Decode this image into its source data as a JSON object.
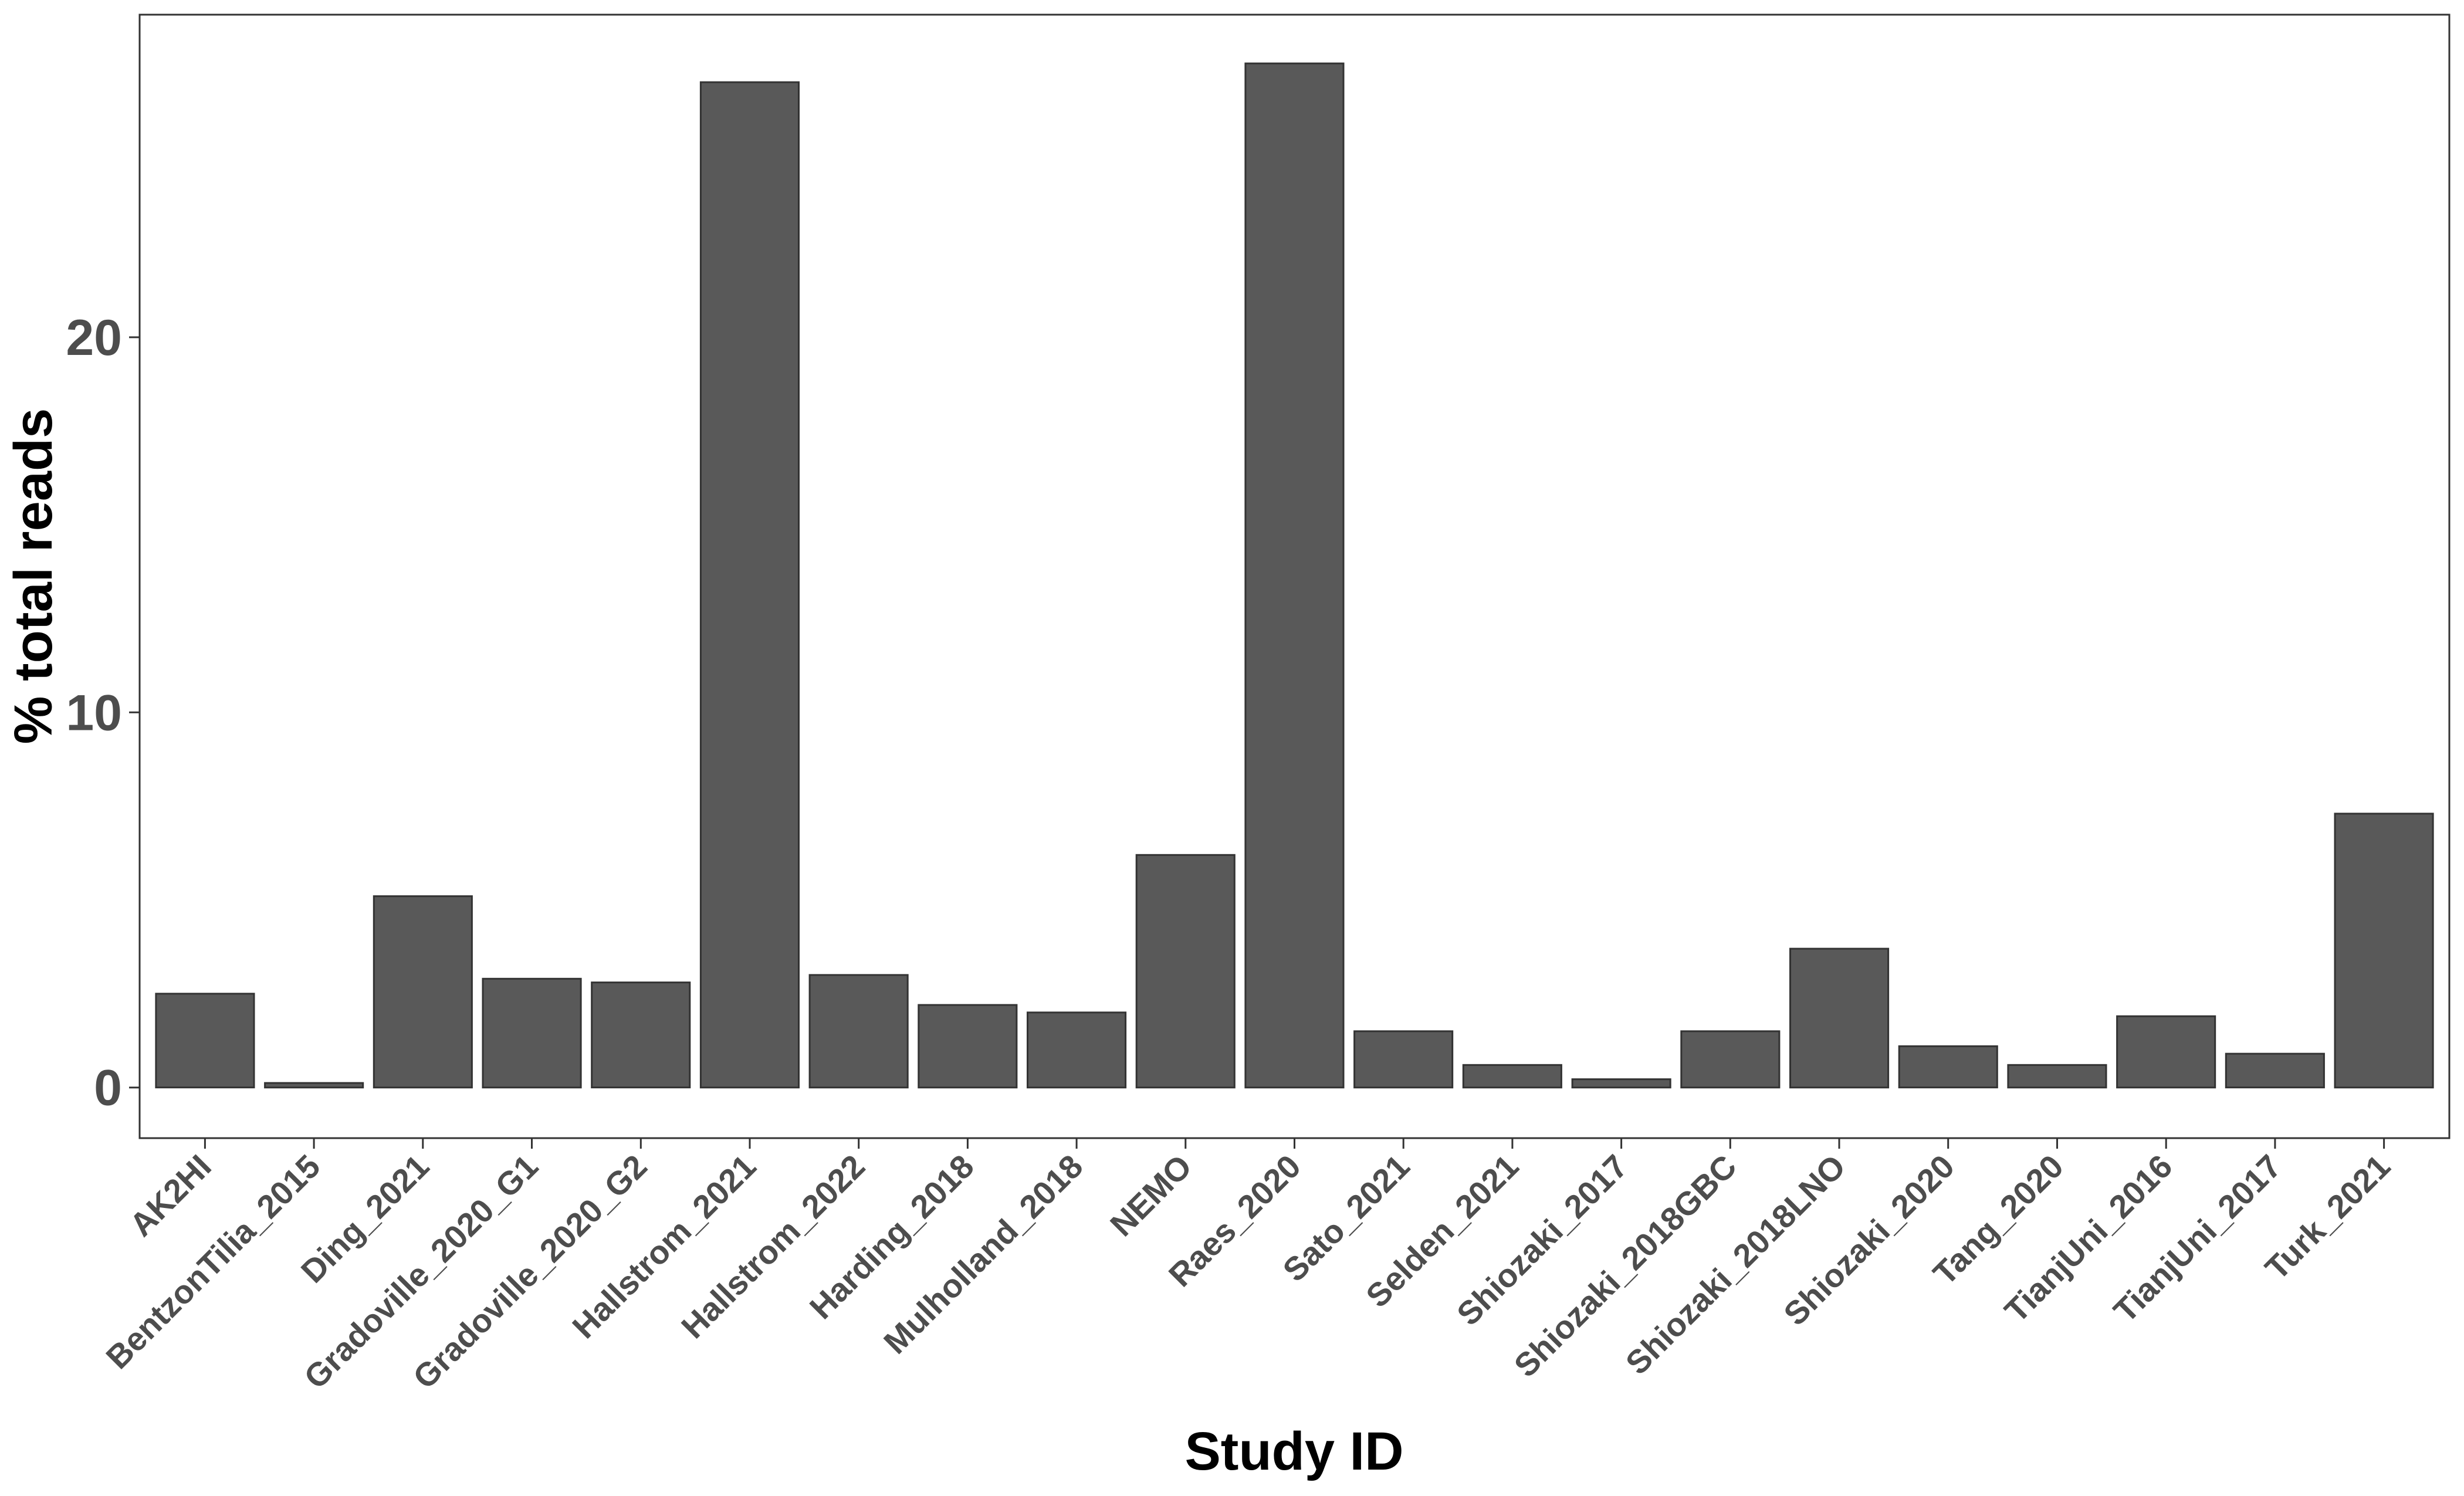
{
  "chart_data": {
    "type": "bar",
    "xlabel": "Study ID",
    "ylabel": "% total reads",
    "ylim": [
      -1.35,
      28.6
    ],
    "yticks": [
      0,
      10,
      20
    ],
    "grid": false,
    "legend": "none",
    "bar_color": "#595959",
    "bar_edge_color": "#333333",
    "categories": [
      "AK2HI",
      "BentzonTilia_2015",
      "Ding_2021",
      "Gradoville_2020_G1",
      "Gradoville_2020_G2",
      "Hallstrom_2021",
      "Hallstrom_2022",
      "Harding_2018",
      "Mulholland_2018",
      "NEMO",
      "Raes_2020",
      "Sato_2021",
      "Selden_2021",
      "Shiozaki_2017",
      "Shiozaki_2018GBC",
      "Shiozaki_2018LNO",
      "Shiozaki_2020",
      "Tang_2020",
      "TianjUni_2016",
      "TianjUni_2017",
      "Turk_2021"
    ],
    "values": [
      2.5,
      0.12,
      5.1,
      2.9,
      2.8,
      26.8,
      3.0,
      2.2,
      2.0,
      6.2,
      27.3,
      1.5,
      0.6,
      0.22,
      1.5,
      3.7,
      1.1,
      0.6,
      1.9,
      0.9,
      7.3
    ]
  }
}
